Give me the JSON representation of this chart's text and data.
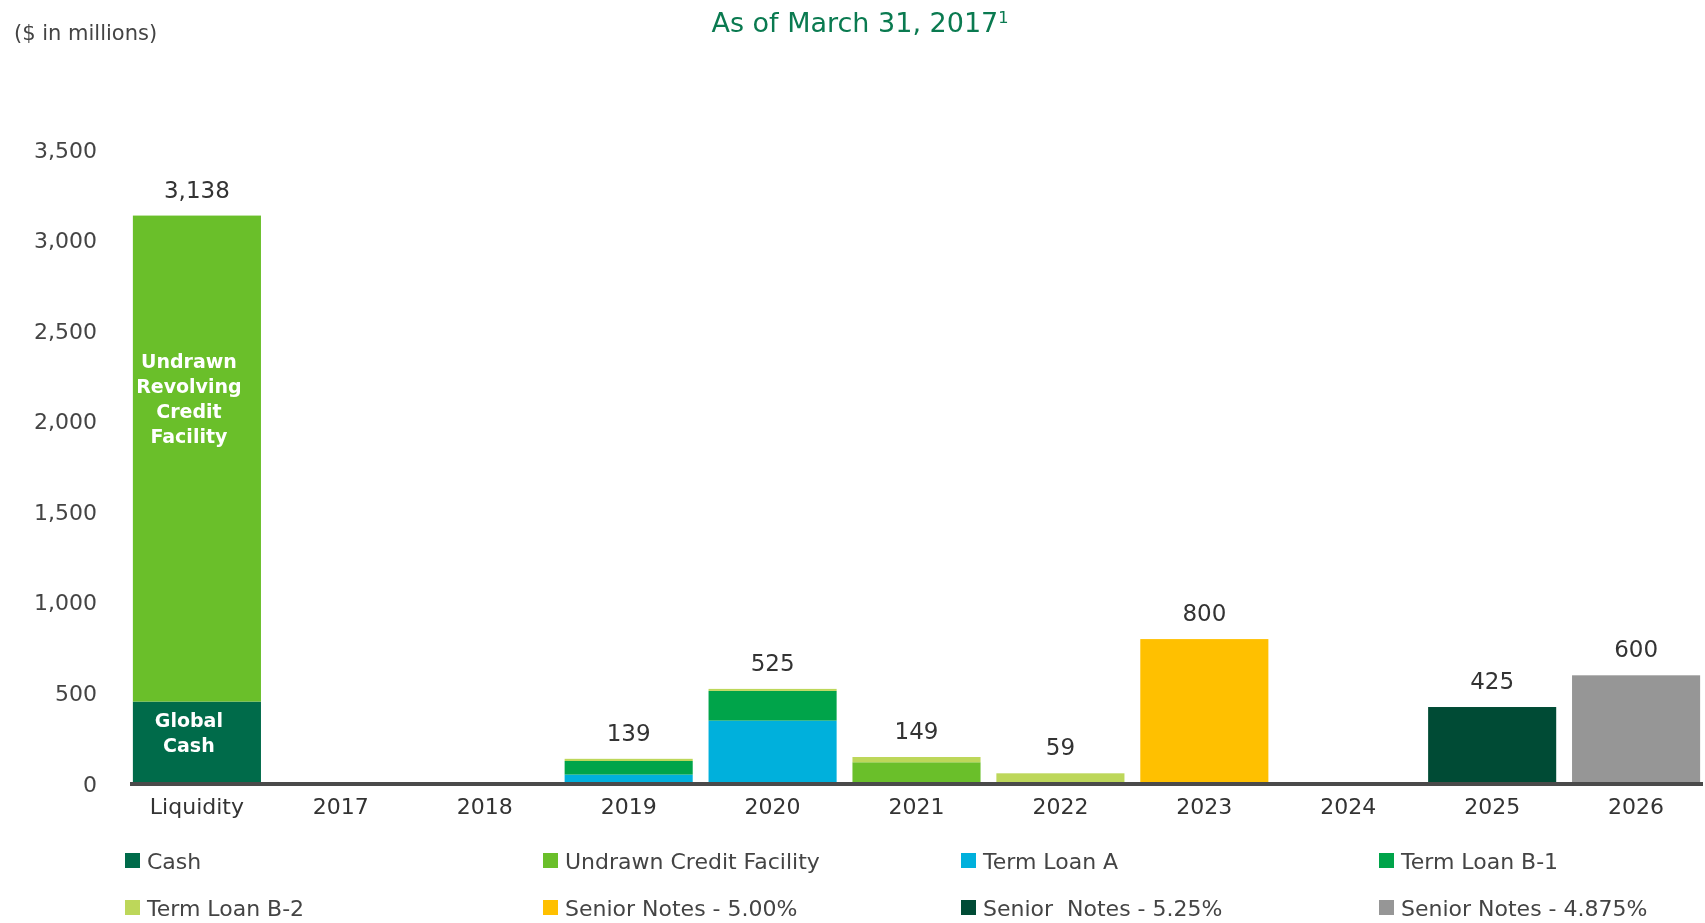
{
  "chart_data": {
    "type": "bar",
    "stacked": true,
    "title": "As of March 31, 2017$^{1}$",
    "ylabel": "($ in millions)",
    "categories": [
      "Liquidity",
      "2017",
      "2018",
      "2019",
      "2020",
      "2021",
      "2022",
      "2023",
      "2024",
      "2025",
      "2026"
    ],
    "series": [
      {
        "name": "Cash",
        "color": "#006b4a",
        "values": [
          455,
          null,
          null,
          null,
          null,
          null,
          null,
          null,
          null,
          null,
          null
        ]
      },
      {
        "name": "Undrawn Credit Facility",
        "color": "#6abf2a",
        "values": [
          2683,
          null,
          null,
          null,
          null,
          120,
          null,
          null,
          null,
          null,
          null
        ]
      },
      {
        "name": "Term Loan A",
        "color": "#00b0dc",
        "values": [
          null,
          null,
          null,
          52,
          350,
          null,
          null,
          null,
          null,
          null,
          null
        ]
      },
      {
        "name": "Term Loan B-1",
        "color": "#00a44a",
        "values": [
          null,
          null,
          null,
          75,
          164,
          null,
          null,
          null,
          null,
          null,
          null
        ]
      },
      {
        "name": "Term Loan B-2",
        "color": "#bdd75a",
        "values": [
          null,
          null,
          null,
          12,
          11,
          29,
          59,
          null,
          null,
          null,
          null
        ]
      },
      {
        "name": "Senior Notes - 5.00%",
        "color": "#ffc000",
        "values": [
          null,
          null,
          null,
          null,
          null,
          null,
          null,
          800,
          null,
          null,
          null
        ]
      },
      {
        "name": "Senior  Notes - 5.25%",
        "color": "#004b35",
        "values": [
          null,
          null,
          null,
          null,
          null,
          null,
          null,
          null,
          null,
          425,
          null
        ]
      },
      {
        "name": "Senior Notes - 4.875%",
        "color": "#969696",
        "values": [
          null,
          null,
          null,
          null,
          null,
          null,
          null,
          null,
          null,
          null,
          600
        ]
      }
    ],
    "totals": [
      "3,138",
      null,
      null,
      "139",
      "525",
      "149",
      "59",
      "800",
      null,
      "425",
      "600"
    ],
    "annotations": [
      "Undrawn Revolving Credit Facility",
      "Global Cash"
    ],
    "ylim": [
      0,
      3500
    ],
    "yticks": [
      {
        "value": 0,
        "label": "0"
      },
      {
        "value": 500,
        "label": "500"
      },
      {
        "value": 1000,
        "label": "1,000"
      },
      {
        "value": 1500,
        "label": "1,500"
      },
      {
        "value": 2000,
        "label": "2,000"
      },
      {
        "value": 2500,
        "label": "2,500"
      },
      {
        "value": 3000,
        "label": "3,000"
      },
      {
        "value": 3500,
        "label": "3,500"
      }
    ],
    "grid": false,
    "legend": "bottom"
  }
}
